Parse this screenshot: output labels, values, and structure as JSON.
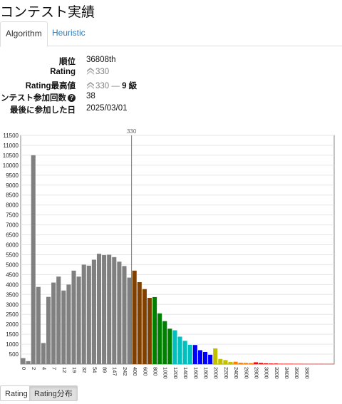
{
  "page_title": "コンテスト実績",
  "tabs": {
    "algorithm": "Algorithm",
    "heuristic": "Heuristic"
  },
  "info": {
    "rank_label": "順位",
    "rank_value": "36808th",
    "rating_label": "Rating",
    "rating_value": "330",
    "highest_label": "Rating最高値",
    "highest_value": "330",
    "highest_sep": " — ",
    "highest_kyu": "9 級",
    "contests_label": "コンテスト参加回数",
    "contests_value": "38",
    "last_label": "最後に参加した日",
    "last_value": "2025/03/01"
  },
  "colors": {
    "gray": "#808080",
    "brown": "#804000",
    "green": "#008000",
    "cyan": "#00C0C0",
    "blue": "#0000FF",
    "yellow": "#C0C000",
    "orange": "#FF8000",
    "red": "#FF0000"
  },
  "buttons": {
    "rating": "Rating",
    "distribution": "Rating分布"
  },
  "chart_data": {
    "type": "bar",
    "marker_value": "330",
    "y_ticks": [
      "500",
      "1000",
      "1500",
      "2000",
      "2500",
      "3000",
      "3500",
      "4000",
      "4500",
      "5000",
      "5500",
      "6000",
      "6500",
      "7000",
      "7500",
      "8000",
      "8500",
      "9000",
      "9500",
      "10000",
      "10500",
      "11000",
      "11500"
    ],
    "ylim": [
      0,
      11500
    ],
    "x_tick_labels": [
      "0",
      "2",
      "4",
      "7",
      "12",
      "19",
      "32",
      "54",
      "89",
      "147",
      "242",
      "400",
      "600",
      "800",
      "1000",
      "1200",
      "1400",
      "1600",
      "1800",
      "2000",
      "2200",
      "2400",
      "2600",
      "2800",
      "3000",
      "3200",
      "3400",
      "3600",
      "3800"
    ],
    "values": [
      300,
      150,
      10500,
      3880,
      1060,
      3380,
      4100,
      4400,
      3700,
      4000,
      4700,
      4400,
      5000,
      4950,
      5250,
      5550,
      5480,
      5500,
      5380,
      5150,
      4930,
      4350,
      4700,
      4120,
      3770,
      3330,
      3370,
      2550,
      2160,
      1780,
      1700,
      1380,
      1170,
      970,
      960,
      700,
      610,
      470,
      790,
      260,
      200,
      110,
      120,
      70,
      60,
      50,
      90,
      60,
      40,
      30,
      30,
      20,
      20,
      20,
      15,
      15,
      10,
      10,
      10,
      10,
      8,
      8
    ],
    "bar_colors": [
      "gray",
      "gray",
      "gray",
      "gray",
      "gray",
      "gray",
      "gray",
      "gray",
      "gray",
      "gray",
      "gray",
      "gray",
      "gray",
      "gray",
      "gray",
      "gray",
      "gray",
      "gray",
      "gray",
      "gray",
      "gray",
      "gray",
      "brown",
      "brown",
      "brown",
      "brown",
      "green",
      "green",
      "green",
      "green",
      "cyan",
      "cyan",
      "cyan",
      "cyan",
      "blue",
      "blue",
      "blue",
      "blue",
      "yellow",
      "yellow",
      "yellow",
      "yellow",
      "orange",
      "orange",
      "orange",
      "orange",
      "red",
      "red",
      "red",
      "red",
      "red",
      "red",
      "red",
      "red",
      "red",
      "red",
      "red",
      "red",
      "red",
      "red",
      "red",
      "red"
    ]
  }
}
